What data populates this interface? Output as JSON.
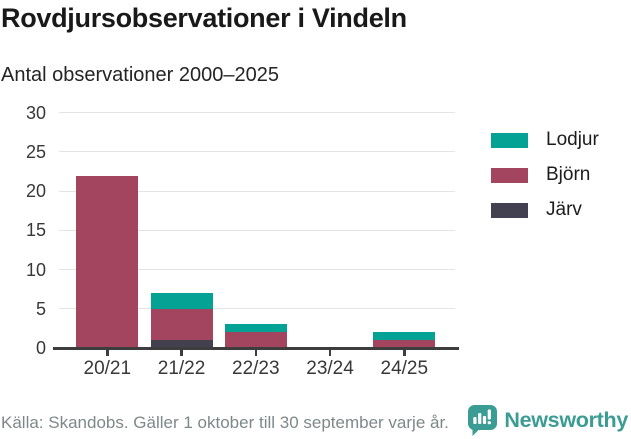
{
  "header": {
    "title": "Rovdjursobservationer i Vindeln",
    "subtitle": "Antal observationer 2000–2025"
  },
  "chart_data": {
    "type": "bar",
    "stacked": true,
    "title": "Rovdjursobservationer i Vindeln",
    "subtitle": "Antal observationer 2000–2025",
    "categories": [
      "20/21",
      "21/22",
      "22/23",
      "23/24",
      "24/25"
    ],
    "series": [
      {
        "name": "Järv",
        "color": "#434150",
        "values": [
          0,
          1,
          0,
          0,
          0
        ]
      },
      {
        "name": "Björn",
        "color": "#a4455f",
        "values": [
          22,
          4,
          2,
          0,
          1
        ]
      },
      {
        "name": "Lodjur",
        "color": "#03a294",
        "values": [
          0,
          2,
          1,
          0,
          1
        ]
      }
    ],
    "totals": [
      22,
      7,
      3,
      0,
      2
    ],
    "ylim": [
      0,
      30
    ],
    "yticks": [
      0,
      5,
      10,
      15,
      20,
      25,
      30
    ],
    "grid": true,
    "legend": {
      "position": "right",
      "entries": [
        {
          "label": "Lodjur",
          "color": "#03a294"
        },
        {
          "label": "Björn",
          "color": "#a4455f"
        },
        {
          "label": "Järv",
          "color": "#434150"
        }
      ]
    }
  },
  "footer": {
    "source": "Källa: Skandobs. Gäller 1 oktober till 30 september varje år.",
    "brand": "Newsworthy",
    "brand_color": "#3b9c93"
  }
}
